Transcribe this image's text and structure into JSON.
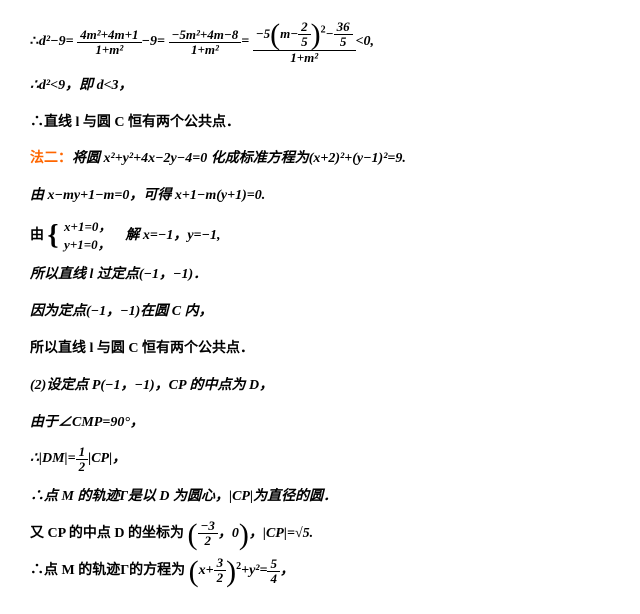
{
  "l1": {
    "pre": "∴",
    "d2m9": "d²−9=",
    "f1n": "4m²+4m+1",
    "f1d": "1+m²",
    "m9": "−9=",
    "f2n": "−5m²+4m−8",
    "f2d": "1+m²",
    "eq": "=",
    "neg5": "−5",
    "inner_m": "m−",
    "two": "2",
    "five": "5",
    "sq": "2",
    "minus": "−",
    "thirtysix": "36",
    "five2": "5",
    "f3d": "1+m²",
    "lt0": "<0,"
  },
  "l2": "∴d²<9，即 d<3，",
  "l3": "∴直线 l 与圆 C 恒有两个公共点．",
  "l4a": "法二：",
  "l4b": "将圆 x²+y²+4x−2y−4=0 化成标准方程为(x+2)²+(y−1)²=9.",
  "l5": "由 x−my+1−m=0，可得 x+1−m(y+1)=0.",
  "l6a": "由",
  "l6b1": "x+1=0，",
  "l6b2": "y+1=0，",
  "l6c": "解 x=−1，y=−1,",
  "l7": "所以直线 l 过定点(−1，−1)．",
  "l8": "因为定点(−1，−1)在圆 C 内，",
  "l9": "所以直线 l 与圆 C 恒有两个公共点．",
  "l10": "(2)设定点 P(−1，−1)，CP 的中点为 D，",
  "l11": "由于∠CMP=90°，",
  "l12a": "∴|DM|=",
  "l12n": "1",
  "l12d": "2",
  "l12b": "|CP|，",
  "l13": "∴点 M 的轨迹Γ是以 D 为圆心，|CP|为直径的圆．",
  "l14a": "又 CP 的中点 D 的坐标为",
  "l14n": "−3",
  "l14d": "2",
  "l14m": "，0",
  "l14b": "，|CP|=√5.",
  "l15a": "∴点 M 的轨迹Γ的方程为",
  "l15xn": "x+",
  "l15_3": "3",
  "l15_2a": "2",
  "l15sq": "2",
  "l15mid": "+y²=",
  "l15_5": "5",
  "l15_4": "4",
  "l15end": "，"
}
